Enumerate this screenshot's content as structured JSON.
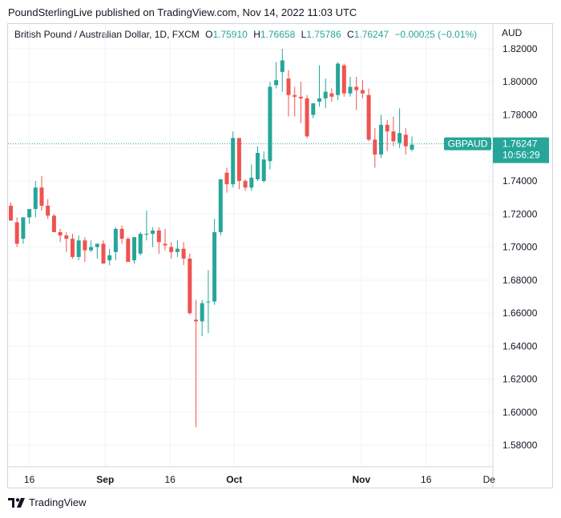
{
  "header": {
    "publisher": "PoundSterlingLive published on TradingView.com, Nov 14, 2022 11:03 UTC"
  },
  "legend": {
    "symbol": "British Pound / Australian Dollar, 1D, FXCM",
    "o_key": "O",
    "o_val": "1.75910",
    "h_key": "H",
    "h_val": "1.76658",
    "l_key": "L",
    "l_val": "1.75786",
    "c_key": "C",
    "c_val": "1.76247",
    "change": "−0.00025 (−0.01%)"
  },
  "currency": "AUD",
  "price_tag": {
    "symbol": "GBPAUD",
    "price": "1.76247",
    "countdown": "10:56:29"
  },
  "footer": {
    "brand": "TradingView"
  },
  "colors": {
    "up": "#26a69a",
    "down": "#ef5350",
    "grid": "#f0f3fa",
    "axis_text": "#131722"
  },
  "chart_data": {
    "type": "candlestick",
    "title": "British Pound / Australian Dollar, 1D, FXCM",
    "ylim": [
      1.567,
      1.835
    ],
    "yticks": [
      "1.82000",
      "1.80000",
      "1.78000",
      "1.76000",
      "1.74000",
      "1.72000",
      "1.70000",
      "1.68000",
      "1.66000",
      "1.64000",
      "1.62000",
      "1.60000",
      "1.58000"
    ],
    "xticks": [
      "16",
      "Sep",
      "16",
      "Oct",
      "Nov",
      "16",
      "De"
    ],
    "last_price": 1.76247,
    "candles": [
      [
        1.725,
        1.727,
        1.716,
        1.716
      ],
      [
        1.715,
        1.718,
        1.7,
        1.702
      ],
      [
        1.705,
        1.718,
        1.702,
        1.718
      ],
      [
        1.718,
        1.722,
        1.714,
        1.723
      ],
      [
        1.723,
        1.74,
        1.718,
        1.736
      ],
      [
        1.736,
        1.743,
        1.722,
        1.725
      ],
      [
        1.725,
        1.729,
        1.717,
        1.719
      ],
      [
        1.719,
        1.72,
        1.709,
        1.709
      ],
      [
        1.709,
        1.711,
        1.703,
        1.707
      ],
      [
        1.707,
        1.709,
        1.697,
        1.705
      ],
      [
        1.705,
        1.708,
        1.693,
        1.694
      ],
      [
        1.694,
        1.707,
        1.692,
        1.704
      ],
      [
        1.704,
        1.706,
        1.691,
        1.698
      ],
      [
        1.698,
        1.704,
        1.697,
        1.7
      ],
      [
        1.7,
        1.702,
        1.693,
        1.702
      ],
      [
        1.702,
        1.704,
        1.69,
        1.69
      ],
      [
        1.692,
        1.699,
        1.689,
        1.695
      ],
      [
        1.697,
        1.712,
        1.692,
        1.711
      ],
      [
        1.711,
        1.713,
        1.702,
        1.705
      ],
      [
        1.705,
        1.706,
        1.691,
        1.691
      ],
      [
        1.692,
        1.706,
        1.69,
        1.706
      ],
      [
        1.696,
        1.709,
        1.695,
        1.708
      ],
      [
        1.708,
        1.722,
        1.704,
        1.708
      ],
      [
        1.708,
        1.712,
        1.7,
        1.71
      ],
      [
        1.71,
        1.712,
        1.696,
        1.703
      ],
      [
        1.702,
        1.711,
        1.698,
        1.701
      ],
      [
        1.7,
        1.703,
        1.693,
        1.697
      ],
      [
        1.697,
        1.704,
        1.694,
        1.699
      ],
      [
        1.699,
        1.703,
        1.689,
        1.693
      ],
      [
        1.693,
        1.696,
        1.659,
        1.66
      ],
      [
        1.656,
        1.668,
        1.591,
        1.655
      ],
      [
        1.655,
        1.668,
        1.646,
        1.666
      ],
      [
        1.667,
        1.686,
        1.648,
        1.667
      ],
      [
        1.667,
        1.717,
        1.665,
        1.709
      ],
      [
        1.709,
        1.74,
        1.707,
        1.741
      ],
      [
        1.745,
        1.748,
        1.733,
        1.738
      ],
      [
        1.738,
        1.77,
        1.736,
        1.766
      ],
      [
        1.766,
        1.766,
        1.735,
        1.74
      ],
      [
        1.74,
        1.741,
        1.734,
        1.736
      ],
      [
        1.736,
        1.75,
        1.734,
        1.742
      ],
      [
        1.741,
        1.761,
        1.74,
        1.757
      ],
      [
        1.74,
        1.758,
        1.739,
        1.753
      ],
      [
        1.752,
        1.8,
        1.747,
        1.797
      ],
      [
        1.798,
        1.812,
        1.796,
        1.801
      ],
      [
        1.806,
        1.82,
        1.794,
        1.813
      ],
      [
        1.802,
        1.807,
        1.779,
        1.792
      ],
      [
        1.792,
        1.797,
        1.779,
        1.791
      ],
      [
        1.791,
        1.8,
        1.775,
        1.79
      ],
      [
        1.79,
        1.792,
        1.766,
        1.767
      ],
      [
        1.78,
        1.787,
        1.778,
        1.787
      ],
      [
        1.788,
        1.81,
        1.785,
        1.79
      ],
      [
        1.79,
        1.802,
        1.784,
        1.794
      ],
      [
        1.793,
        1.796,
        1.788,
        1.791
      ],
      [
        1.792,
        1.812,
        1.789,
        1.811
      ],
      [
        1.81,
        1.811,
        1.791,
        1.793
      ],
      [
        1.793,
        1.803,
        1.791,
        1.797
      ],
      [
        1.797,
        1.803,
        1.783,
        1.795
      ],
      [
        1.795,
        1.801,
        1.79,
        1.793
      ],
      [
        1.792,
        1.796,
        1.764,
        1.765
      ],
      [
        1.765,
        1.772,
        1.748,
        1.756
      ],
      [
        1.756,
        1.78,
        1.754,
        1.774
      ],
      [
        1.774,
        1.777,
        1.758,
        1.77
      ],
      [
        1.77,
        1.779,
        1.761,
        1.764
      ],
      [
        1.763,
        1.784,
        1.76,
        1.769
      ],
      [
        1.768,
        1.772,
        1.756,
        1.761
      ],
      [
        1.759,
        1.767,
        1.758,
        1.762
      ]
    ]
  }
}
